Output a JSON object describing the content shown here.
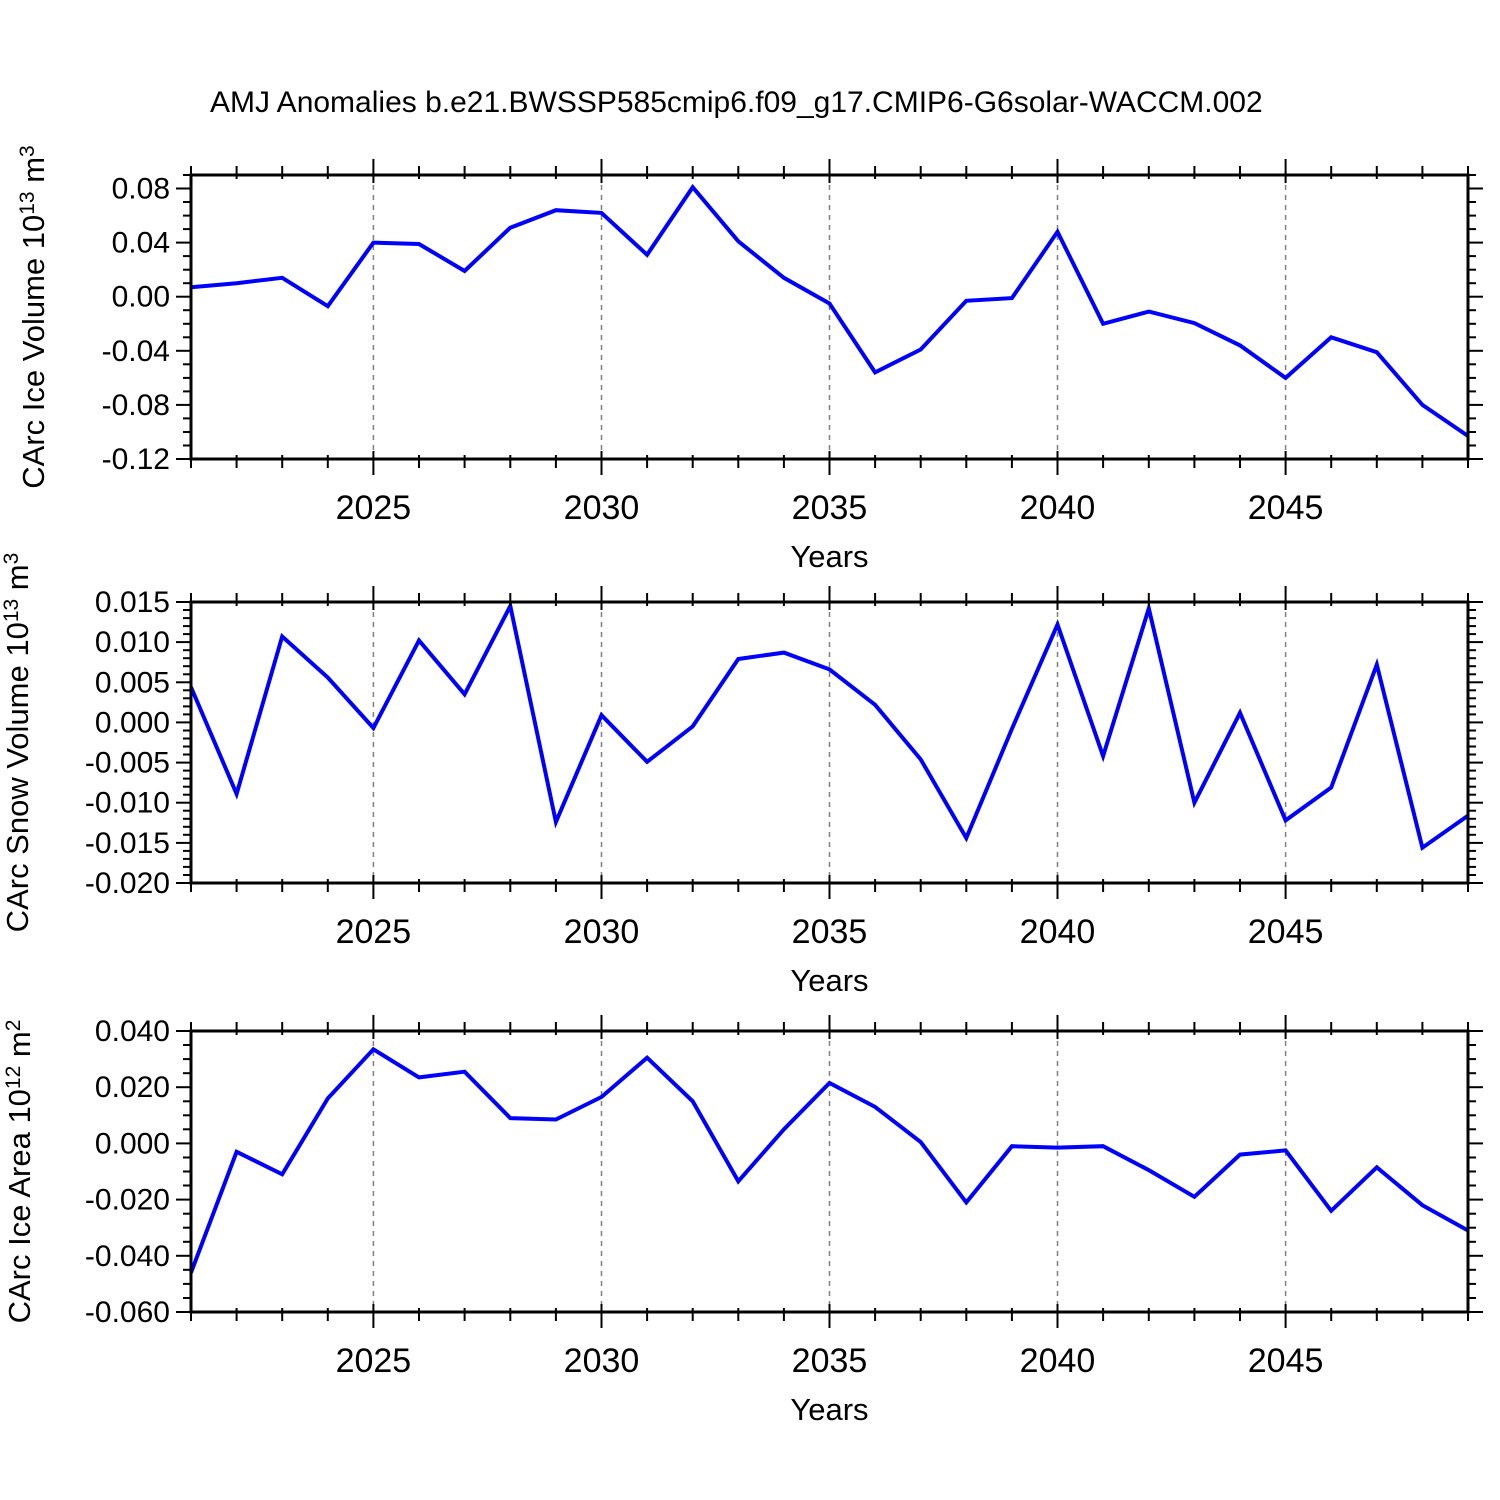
{
  "title": "AMJ Anomalies b.e21.BWSSP585cmip6.f09_g17.CMIP6-G6solar-WACCM.002",
  "colors": {
    "background": "#ffffff",
    "line": "#0000ff",
    "axis": "#000000",
    "grid": "#808080",
    "text": "#000000"
  },
  "chart_data": [
    {
      "type": "line",
      "name": "carc-ice-volume",
      "ylabel": "CArc Ice Volume 10^13 m^3",
      "ylabel_segments": [
        {
          "text": "CArc Ice Volume 10"
        },
        {
          "text": "13",
          "sup": true
        },
        {
          "text": " m"
        },
        {
          "text": "3",
          "sup": true
        }
      ],
      "xlabel": "Years",
      "x": [
        2021,
        2022,
        2023,
        2024,
        2025,
        2026,
        2027,
        2028,
        2029,
        2030,
        2031,
        2032,
        2033,
        2034,
        2035,
        2036,
        2037,
        2038,
        2039,
        2040,
        2041,
        2042,
        2043,
        2044,
        2045,
        2046,
        2047,
        2048,
        2049
      ],
      "values": [
        0.007,
        0.01,
        0.014,
        -0.007,
        0.04,
        0.039,
        0.019,
        0.051,
        0.064,
        0.062,
        0.031,
        0.081,
        0.041,
        0.014,
        -0.005,
        -0.056,
        -0.039,
        -0.003,
        -0.001,
        0.048,
        -0.02,
        -0.011,
        -0.0195,
        -0.036,
        -0.06,
        -0.03,
        -0.041,
        -0.08,
        -0.103
      ],
      "xlim": [
        2021,
        2049
      ],
      "ylim": [
        -0.12,
        0.09
      ],
      "x_major_ticks": [
        2025,
        2030,
        2035,
        2040,
        2045
      ],
      "x_minor_step": 1,
      "y_tick_values": [
        0.08,
        0.04,
        0,
        -0.04,
        -0.08,
        -0.12
      ],
      "y_tick_labels": [
        "0.08",
        "0.04",
        "0.00",
        "-0.04",
        "-0.08",
        "-0.12"
      ],
      "y_minor_step": 0.01,
      "grid": "vertical-dashed",
      "legend": "none"
    },
    {
      "type": "line",
      "name": "carc-snow-volume",
      "ylabel": "CArc Snow Volume 10^13 m^3",
      "ylabel_segments": [
        {
          "text": "CArc Snow Volume 10"
        },
        {
          "text": "13",
          "sup": true
        },
        {
          "text": " m"
        },
        {
          "text": "3",
          "sup": true
        }
      ],
      "xlabel": "Years",
      "x": [
        2021,
        2022,
        2023,
        2024,
        2025,
        2026,
        2027,
        2028,
        2029,
        2030,
        2031,
        2032,
        2033,
        2034,
        2035,
        2036,
        2037,
        2038,
        2039,
        2040,
        2041,
        2042,
        2043,
        2044,
        2045,
        2046,
        2047,
        2048,
        2049
      ],
      "values": [
        0.0044,
        -0.0089,
        0.0107,
        0.0056,
        -0.0007,
        0.0102,
        0.0035,
        0.0145,
        -0.0124,
        0.0009,
        -0.0049,
        -0.0005,
        0.0079,
        0.0087,
        0.0066,
        0.0022,
        -0.0046,
        -0.0144,
        -0.0008,
        0.0122,
        -0.0042,
        0.0142,
        -0.01,
        0.0012,
        -0.0122,
        -0.0081,
        0.0072,
        -0.0156,
        -0.0116
      ],
      "xlim": [
        2021,
        2049
      ],
      "ylim": [
        -0.02,
        0.015
      ],
      "x_major_ticks": [
        2025,
        2030,
        2035,
        2040,
        2045
      ],
      "x_minor_step": 1,
      "y_tick_values": [
        0.015,
        0.01,
        0.005,
        0,
        -0.005,
        -0.01,
        -0.015,
        -0.02
      ],
      "y_tick_labels": [
        "0.015",
        "0.010",
        "0.005",
        "0.000",
        "-0.005",
        "-0.010",
        "-0.015",
        "-0.020"
      ],
      "y_minor_step": 0.001,
      "grid": "vertical-dashed",
      "legend": "none"
    },
    {
      "type": "line",
      "name": "carc-ice-area",
      "ylabel": "CArc Ice Area 10^12 m^2",
      "ylabel_segments": [
        {
          "text": "CArc Ice Area 10"
        },
        {
          "text": "12",
          "sup": true
        },
        {
          "text": " m"
        },
        {
          "text": "2",
          "sup": true
        }
      ],
      "xlabel": "Years",
      "x": [
        2021,
        2022,
        2023,
        2024,
        2025,
        2026,
        2027,
        2028,
        2029,
        2030,
        2031,
        2032,
        2033,
        2034,
        2035,
        2036,
        2037,
        2038,
        2039,
        2040,
        2041,
        2042,
        2043,
        2044,
        2045,
        2046,
        2047,
        2048,
        2049
      ],
      "values": [
        -0.046,
        -0.003,
        -0.011,
        0.016,
        0.0335,
        0.0235,
        0.0255,
        0.009,
        0.0085,
        0.0165,
        0.0305,
        0.015,
        -0.0135,
        0.005,
        0.0215,
        0.013,
        0.0005,
        -0.021,
        -0.001,
        -0.0015,
        -0.001,
        -0.0095,
        -0.019,
        -0.004,
        -0.0025,
        -0.024,
        -0.0085,
        -0.022,
        -0.031
      ],
      "xlim": [
        2021,
        2049
      ],
      "ylim": [
        -0.06,
        0.04
      ],
      "x_major_ticks": [
        2025,
        2030,
        2035,
        2040,
        2045
      ],
      "x_minor_step": 1,
      "y_tick_values": [
        0.04,
        0.02,
        0,
        -0.02,
        -0.04,
        -0.06
      ],
      "y_tick_labels": [
        "0.040",
        "0.020",
        "0.000",
        "-0.020",
        "-0.040",
        "-0.060"
      ],
      "y_minor_step": 0.005,
      "grid": "vertical-dashed",
      "legend": "none"
    }
  ]
}
